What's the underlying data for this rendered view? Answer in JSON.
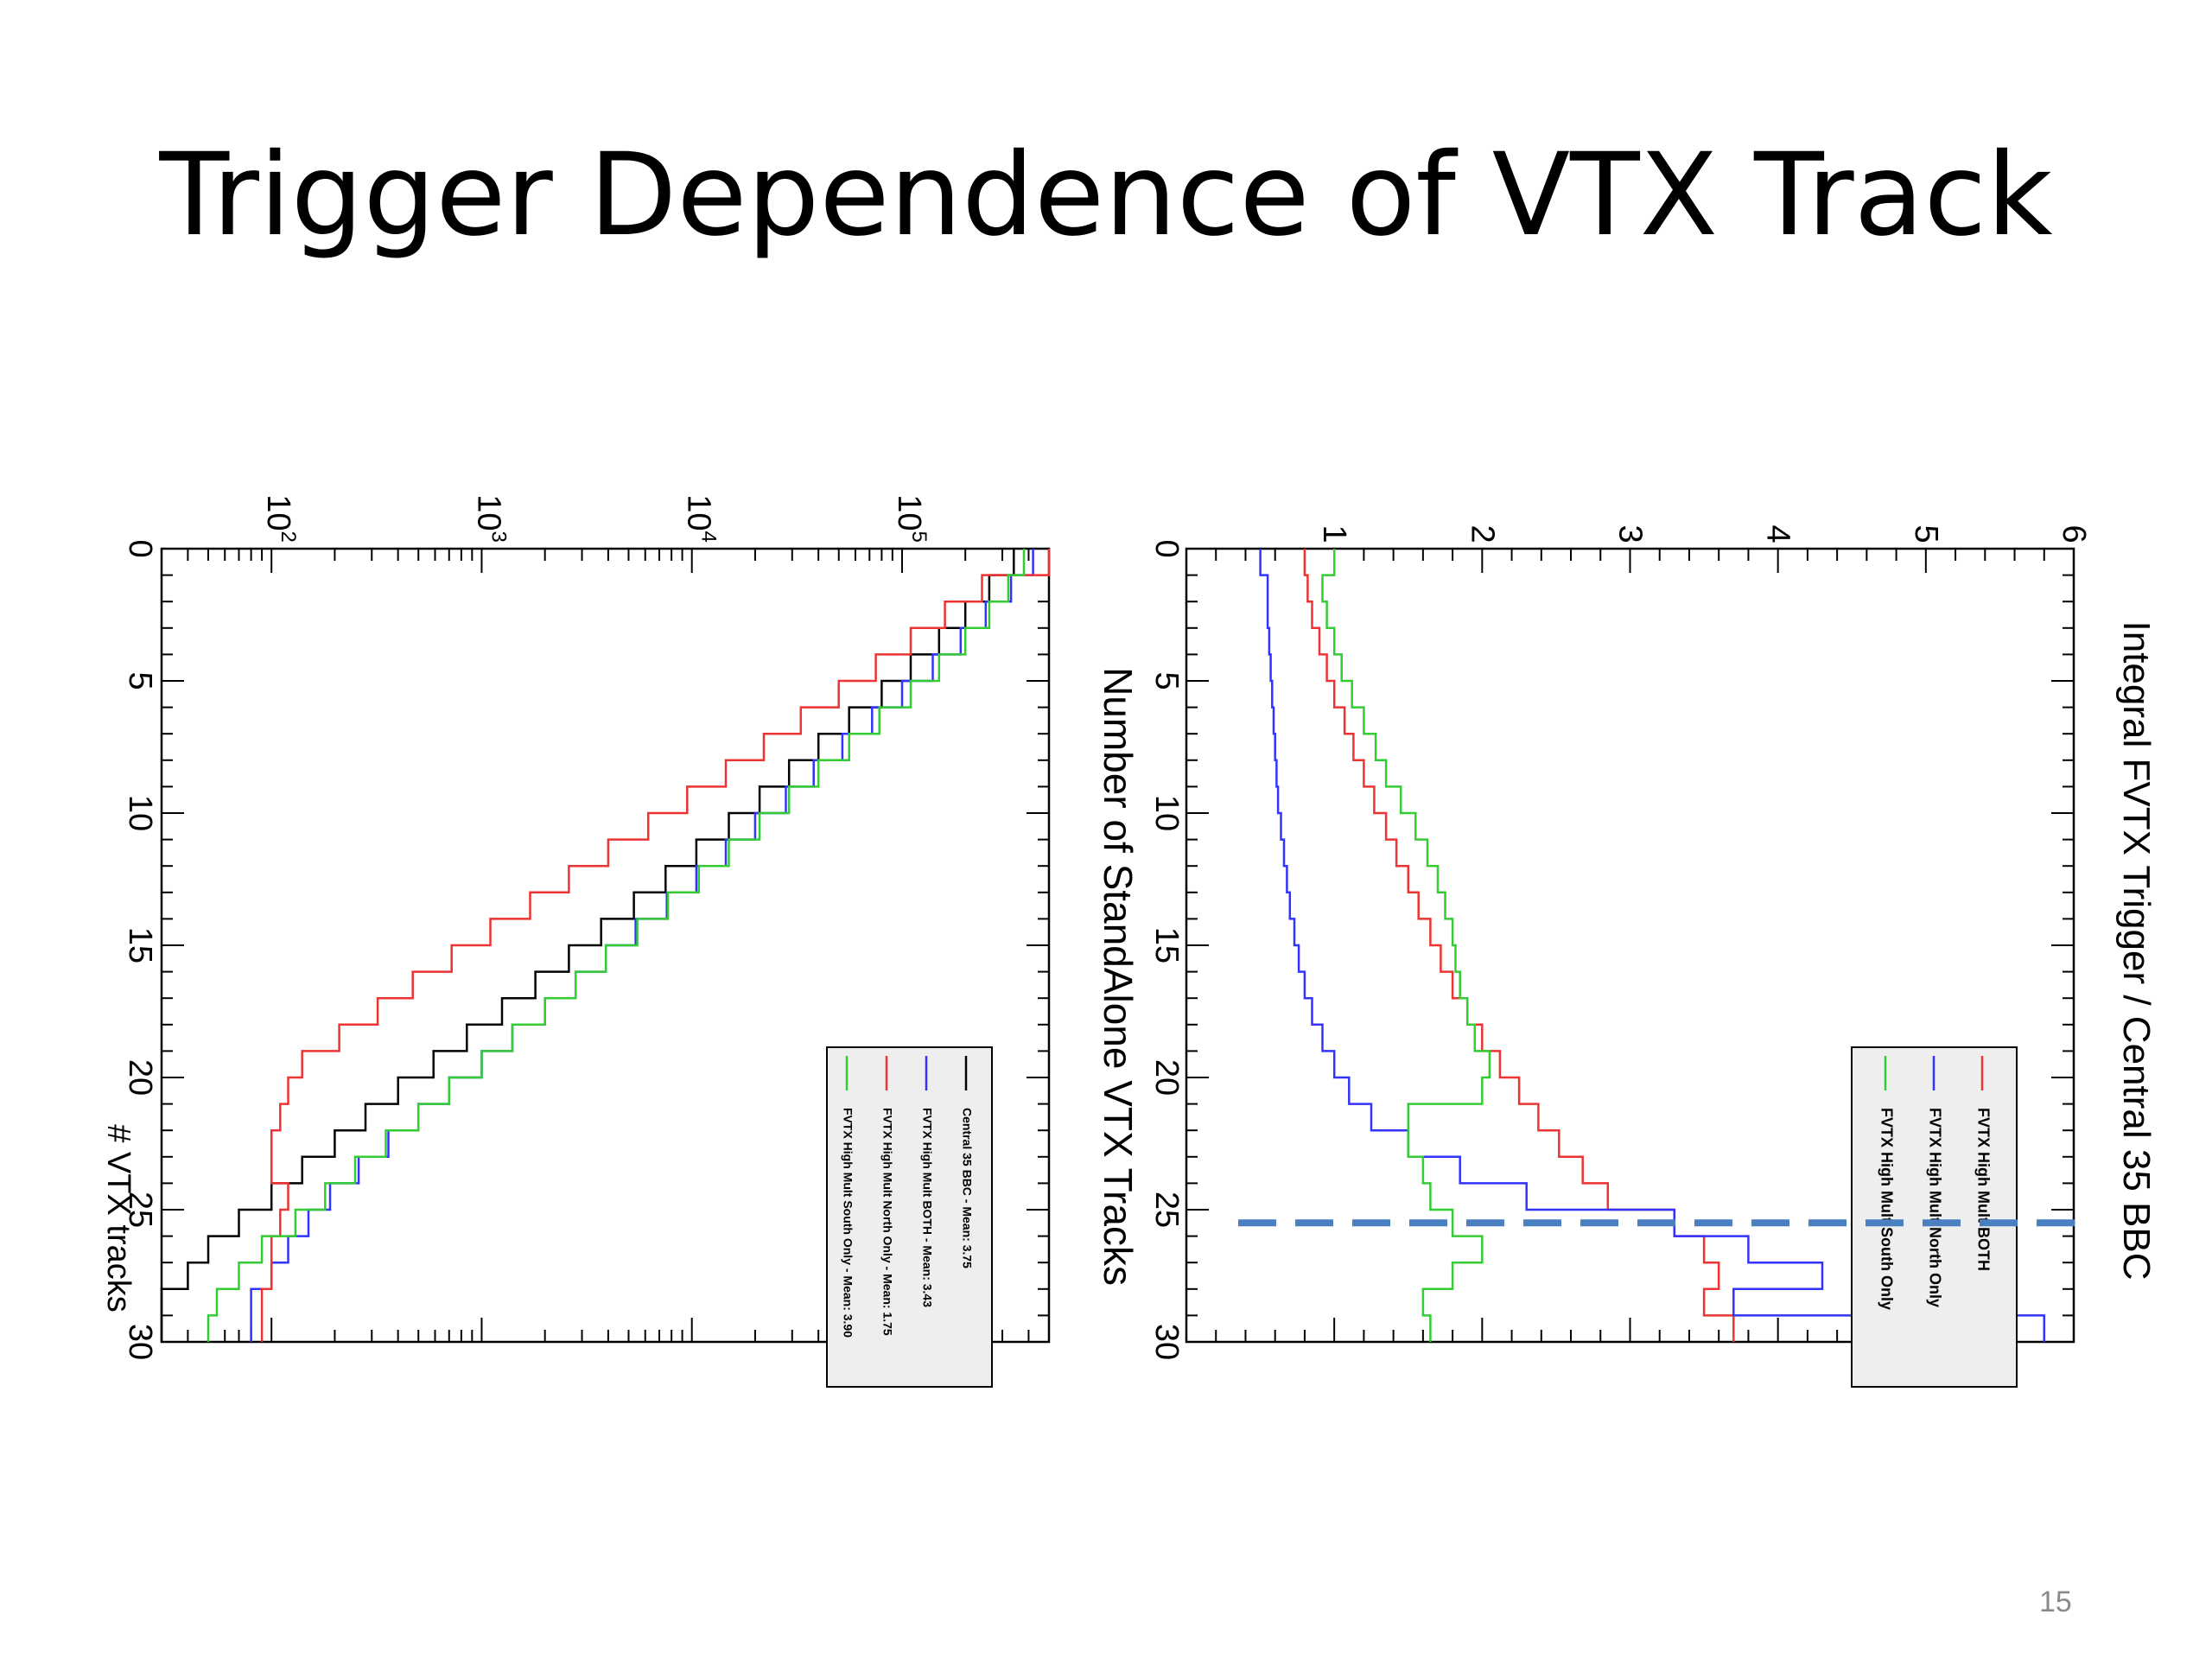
{
  "title": "Trigger Dependence of VTX Track",
  "page_number": "15",
  "chart_data": [
    {
      "type": "line",
      "orientation": "rotated 90 degrees clockwise",
      "title": "",
      "xlabel": "# VTX tracks",
      "ylabel": "",
      "xlim": [
        0,
        30
      ],
      "ylim": [
        30,
        500000
      ],
      "log_y": true,
      "x_ticks": [
        "0",
        "5",
        "10",
        "15",
        "20",
        "25",
        "30"
      ],
      "y_ticks": [
        "10^2",
        "10^3",
        "10^4",
        "10^5"
      ],
      "grid": false,
      "legend_position": "bottom-right",
      "x": [
        0,
        1,
        2,
        3,
        4,
        5,
        6,
        7,
        8,
        9,
        10,
        11,
        12,
        13,
        14,
        15,
        16,
        17,
        18,
        19,
        20,
        21,
        22,
        23,
        24,
        25,
        26,
        27,
        28,
        29
      ],
      "series": [
        {
          "name": "Central 35 BBC - Mean: 3.75",
          "color": "#000000",
          "values": [
            340000,
            260000,
            200000,
            150000,
            110000,
            80000,
            56000,
            40000,
            29000,
            21000,
            15000,
            10500,
            7500,
            5300,
            3700,
            2600,
            1800,
            1250,
            850,
            590,
            400,
            280,
            200,
            140,
            100,
            70,
            50,
            40,
            30,
            30
          ]
        },
        {
          "name": "FVTX High Mult BOTH - Mean: 3.43",
          "color": "#3333ff",
          "values": [
            420000,
            330000,
            250000,
            190000,
            140000,
            100000,
            72000,
            52000,
            38000,
            28000,
            20000,
            14500,
            10500,
            7600,
            5400,
            3900,
            2800,
            2000,
            1400,
            1000,
            700,
            500,
            360,
            260,
            190,
            150,
            120,
            100,
            80,
            80
          ]
        },
        {
          "name": "FVTX High Mult North Only - Mean: 1.75",
          "color": "#ee3333",
          "values": [
            500000,
            240000,
            160000,
            110000,
            75000,
            50000,
            33000,
            22000,
            14500,
            9500,
            6200,
            4000,
            2600,
            1700,
            1100,
            720,
            470,
            320,
            210,
            140,
            120,
            110,
            100,
            100,
            120,
            110,
            100,
            100,
            90,
            90
          ]
        },
        {
          "name": "FVTX High Mult South Only - Mean: 3.90",
          "color": "#33cc33",
          "values": [
            380000,
            320000,
            260000,
            200000,
            150000,
            110000,
            78000,
            56000,
            40000,
            29000,
            21000,
            15000,
            10800,
            7700,
            5500,
            3900,
            2800,
            2000,
            1400,
            1000,
            700,
            500,
            350,
            250,
            180,
            130,
            90,
            70,
            55,
            50
          ]
        }
      ]
    },
    {
      "type": "line",
      "orientation": "rotated 90 degrees clockwise",
      "title": "",
      "xlabel": "Number of StandAlone VTX Tracks",
      "ylabel": "Integral FVTX Trigger / Central 35 BBC",
      "xlim": [
        0,
        30
      ],
      "ylim": [
        0,
        6
      ],
      "x_ticks": [
        "0",
        "5",
        "10",
        "15",
        "20",
        "25",
        "30"
      ],
      "y_ticks": [
        "1",
        "2",
        "3",
        "4",
        "5",
        "6"
      ],
      "grid": false,
      "legend_position": "bottom-right",
      "threshold_line": 25.5,
      "x": [
        0,
        1,
        2,
        3,
        4,
        5,
        6,
        7,
        8,
        9,
        10,
        11,
        12,
        13,
        14,
        15,
        16,
        17,
        18,
        19,
        20,
        21,
        22,
        23,
        24,
        25,
        26,
        27,
        28,
        29
      ],
      "series": [
        {
          "name": "FVTX High Mult BOTH",
          "color": "#ee3333",
          "values": [
            0.8,
            0.82,
            0.85,
            0.9,
            0.95,
            1.0,
            1.07,
            1.13,
            1.2,
            1.27,
            1.35,
            1.42,
            1.5,
            1.57,
            1.65,
            1.72,
            1.8,
            1.9,
            2.0,
            2.12,
            2.25,
            2.38,
            2.52,
            2.68,
            2.85,
            3.3,
            3.5,
            3.6,
            3.5,
            3.7
          ]
        },
        {
          "name": "FVTX High Mult North Only",
          "color": "#3333ff",
          "values": [
            0.5,
            0.55,
            0.55,
            0.56,
            0.57,
            0.58,
            0.59,
            0.6,
            0.61,
            0.62,
            0.64,
            0.66,
            0.68,
            0.7,
            0.73,
            0.76,
            0.8,
            0.85,
            0.92,
            1.0,
            1.1,
            1.25,
            1.5,
            1.85,
            2.3,
            3.3,
            3.8,
            4.3,
            3.7,
            5.8
          ]
        },
        {
          "name": "FVTX High Mult South Only",
          "color": "#33cc33",
          "values": [
            1.0,
            0.92,
            0.95,
            1.0,
            1.05,
            1.12,
            1.2,
            1.28,
            1.35,
            1.45,
            1.55,
            1.63,
            1.7,
            1.75,
            1.8,
            1.82,
            1.85,
            1.9,
            1.95,
            2.05,
            2.0,
            1.5,
            1.5,
            1.6,
            1.65,
            1.8,
            2.0,
            1.8,
            1.6,
            1.65
          ]
        }
      ]
    }
  ]
}
